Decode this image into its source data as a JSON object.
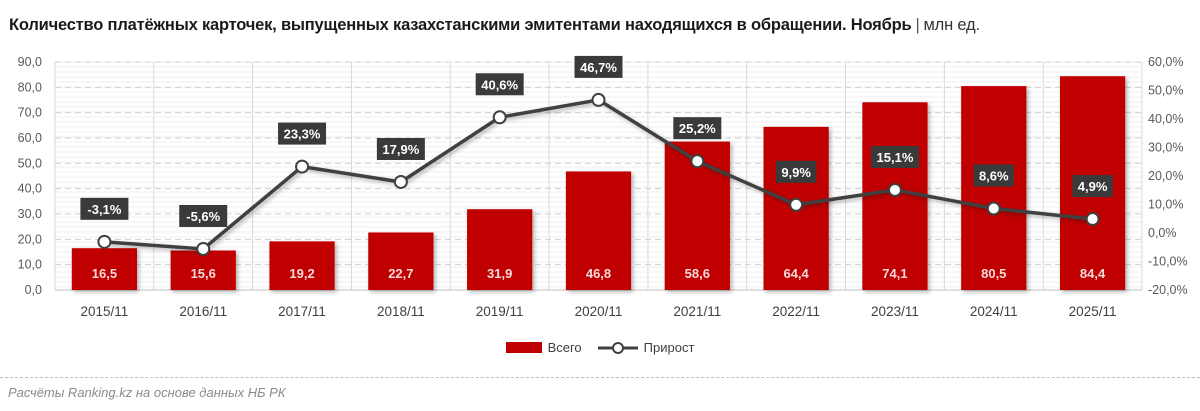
{
  "header": {
    "title": "Количество платёжных карточек, выпущенных казахстанскими эмитентами находящихся в обращении. Ноябрь",
    "separator": "|",
    "unit": "млн ед."
  },
  "legend": {
    "bar_label": "Всего",
    "line_label": "Прирост"
  },
  "footer": {
    "source": "Расчёты Ranking.kz на основе данных НБ РК"
  },
  "colors": {
    "bar": "#c00000",
    "line": "#404040",
    "label_box": "#3a3a3a",
    "grid": "#d9d9d9"
  },
  "chart_data": {
    "type": "bar+line",
    "title": "Количество платёжных карточек, выпущенных казахстанскими эмитентами находящихся в обращении. Ноябрь | млн ед.",
    "categories": [
      "2015/11",
      "2016/11",
      "2017/11",
      "2018/11",
      "2019/11",
      "2020/11",
      "2021/11",
      "2022/11",
      "2023/11",
      "2024/11",
      "2025/11"
    ],
    "series": [
      {
        "name": "Всего",
        "type": "bar",
        "axis": "left",
        "values": [
          16.5,
          15.6,
          19.2,
          22.7,
          31.9,
          46.8,
          58.6,
          64.4,
          74.1,
          80.5,
          84.4
        ],
        "labels": [
          "16,5",
          "15,6",
          "19,2",
          "22,7",
          "31,9",
          "46,8",
          "58,6",
          "64,4",
          "74,1",
          "80,5",
          "84,4"
        ]
      },
      {
        "name": "Прирост",
        "type": "line",
        "axis": "right",
        "values": [
          -3.1,
          -5.6,
          23.3,
          17.9,
          40.6,
          46.7,
          25.2,
          9.9,
          15.1,
          8.6,
          4.9
        ],
        "labels": [
          "-3,1%",
          "-5,6%",
          "23,3%",
          "17,9%",
          "40,6%",
          "46,7%",
          "25,2%",
          "9,9%",
          "15,1%",
          "8,6%",
          "4,9%"
        ]
      }
    ],
    "y_left": {
      "ylim": [
        0,
        90
      ],
      "ticks": [
        "0,0",
        "10,0",
        "20,0",
        "30,0",
        "40,0",
        "50,0",
        "60,0",
        "70,0",
        "80,0",
        "90,0"
      ]
    },
    "y_right": {
      "ylim": [
        -20,
        60
      ],
      "ticks": [
        "-20,0%",
        "-10,0%",
        "0,0%",
        "10,0%",
        "20,0%",
        "30,0%",
        "40,0%",
        "50,0%",
        "60,0%"
      ]
    },
    "grid": true,
    "legend_position": "bottom"
  }
}
